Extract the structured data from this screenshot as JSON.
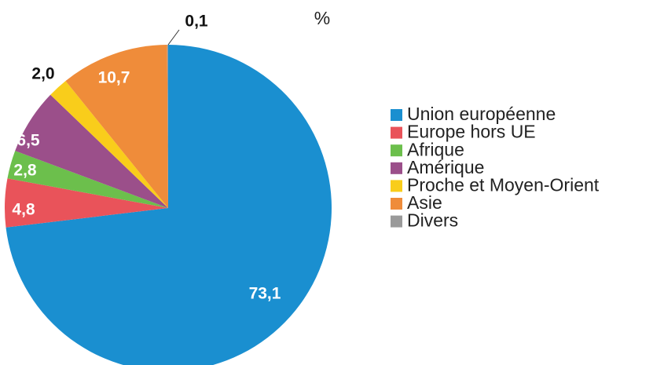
{
  "chart_data": {
    "type": "pie",
    "unit": "%",
    "categories": [
      "Union européenne",
      "Europe hors UE",
      "Afrique",
      "Amérique",
      "Proche et Moyen-Orient",
      "Asie",
      "Divers"
    ],
    "values": [
      73.1,
      4.8,
      2.8,
      6.5,
      2.0,
      10.7,
      0.1
    ],
    "value_labels": [
      "73,1",
      "4,8",
      "2,8",
      "6,5",
      "2,0",
      "10,7",
      "0,1"
    ],
    "colors": [
      "#1a8fd0",
      "#e9535a",
      "#6cbf4c",
      "#9b4f8a",
      "#f9cd1b",
      "#ef8c3a",
      "#9a9a9a"
    ],
    "legend": "right"
  }
}
